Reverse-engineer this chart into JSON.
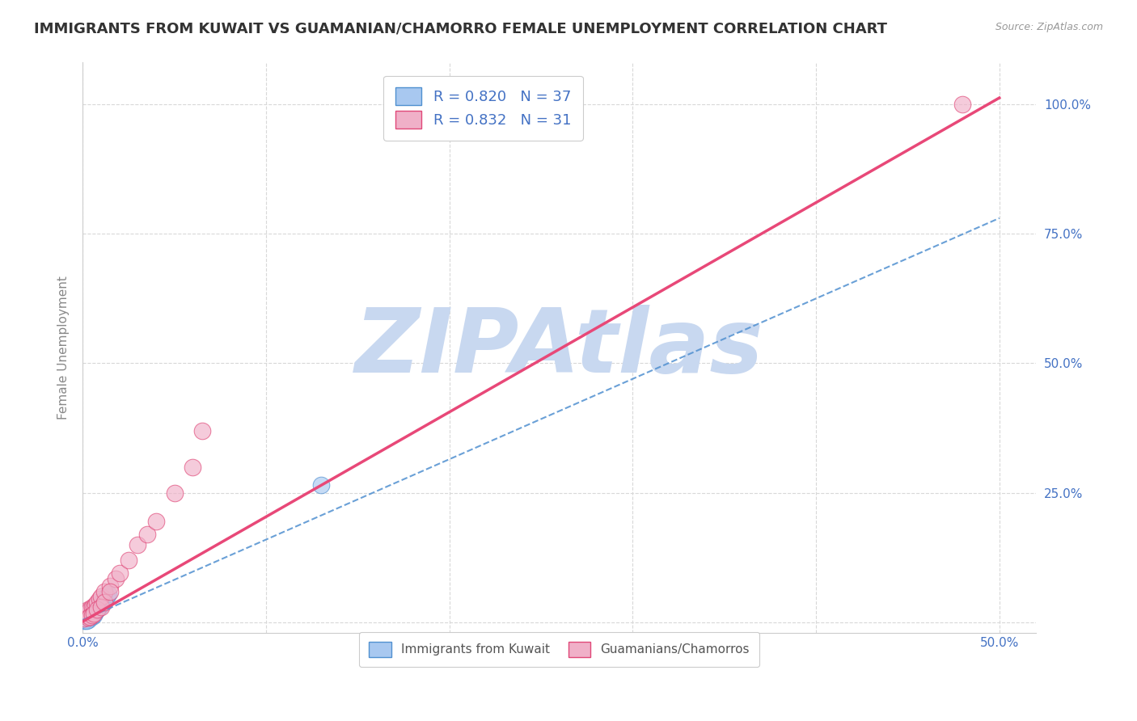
{
  "title": "IMMIGRANTS FROM KUWAIT VS GUAMANIAN/CHAMORRO FEMALE UNEMPLOYMENT CORRELATION CHART",
  "source_text": "Source: ZipAtlas.com",
  "ylabel": "Female Unemployment",
  "xlim": [
    0.0,
    0.52
  ],
  "ylim": [
    -0.02,
    1.08
  ],
  "xtick_positions": [
    0.0,
    0.1,
    0.2,
    0.3,
    0.4,
    0.5
  ],
  "xticklabels": [
    "0.0%",
    "",
    "",
    "",
    "",
    "50.0%"
  ],
  "ytick_positions": [
    0.0,
    0.25,
    0.5,
    0.75,
    1.0
  ],
  "yticklabels_right": [
    "",
    "25.0%",
    "50.0%",
    "75.0%",
    "100.0%"
  ],
  "title_fontsize": 13,
  "axis_label_fontsize": 11,
  "tick_fontsize": 11,
  "watermark": "ZIPAtlas",
  "watermark_color": "#c8d8f0",
  "background_color": "#ffffff",
  "grid_color": "#d8d8d8",
  "blue_color": "#a8c8f0",
  "pink_color": "#f0b0c8",
  "blue_edge_color": "#5090d0",
  "pink_edge_color": "#e04878",
  "blue_line_color": "#5090d0",
  "pink_line_color": "#e84878",
  "R_blue": 0.82,
  "N_blue": 37,
  "R_pink": 0.832,
  "N_pink": 31,
  "legend_label_blue": "Immigrants from Kuwait",
  "legend_label_pink": "Guamanians/Chamorros",
  "legend_text_color": "#4472c4",
  "tick_label_color": "#4472c4",
  "ylabel_color": "#888888",
  "title_color": "#333333",
  "source_color": "#999999",
  "blue_scatter_x": [
    0.001,
    0.002,
    0.002,
    0.003,
    0.003,
    0.003,
    0.004,
    0.004,
    0.004,
    0.005,
    0.005,
    0.005,
    0.006,
    0.006,
    0.007,
    0.007,
    0.008,
    0.008,
    0.009,
    0.009,
    0.01,
    0.01,
    0.011,
    0.012,
    0.013,
    0.014,
    0.001,
    0.002,
    0.003,
    0.004,
    0.005,
    0.006,
    0.002,
    0.003,
    0.13,
    0.001,
    0.002
  ],
  "blue_scatter_y": [
    0.005,
    0.01,
    0.015,
    0.01,
    0.012,
    0.02,
    0.012,
    0.015,
    0.02,
    0.015,
    0.018,
    0.025,
    0.018,
    0.022,
    0.02,
    0.025,
    0.025,
    0.03,
    0.03,
    0.035,
    0.035,
    0.04,
    0.04,
    0.045,
    0.05,
    0.055,
    0.008,
    0.008,
    0.008,
    0.01,
    0.012,
    0.015,
    0.005,
    0.005,
    0.265,
    0.003,
    0.003
  ],
  "pink_scatter_x": [
    0.001,
    0.002,
    0.003,
    0.003,
    0.004,
    0.005,
    0.006,
    0.007,
    0.008,
    0.009,
    0.01,
    0.012,
    0.015,
    0.018,
    0.02,
    0.025,
    0.03,
    0.035,
    0.04,
    0.05,
    0.06,
    0.065,
    0.003,
    0.004,
    0.005,
    0.006,
    0.008,
    0.01,
    0.012,
    0.015,
    0.48
  ],
  "pink_scatter_y": [
    0.008,
    0.015,
    0.02,
    0.025,
    0.025,
    0.03,
    0.03,
    0.035,
    0.04,
    0.045,
    0.05,
    0.06,
    0.07,
    0.085,
    0.095,
    0.12,
    0.15,
    0.17,
    0.195,
    0.25,
    0.3,
    0.37,
    0.01,
    0.012,
    0.015,
    0.018,
    0.025,
    0.03,
    0.04,
    0.06,
    1.0
  ],
  "pink_line_slope": 2.02,
  "pink_line_intercept": 0.002,
  "blue_line_slope": 1.55,
  "blue_line_intercept": 0.005
}
